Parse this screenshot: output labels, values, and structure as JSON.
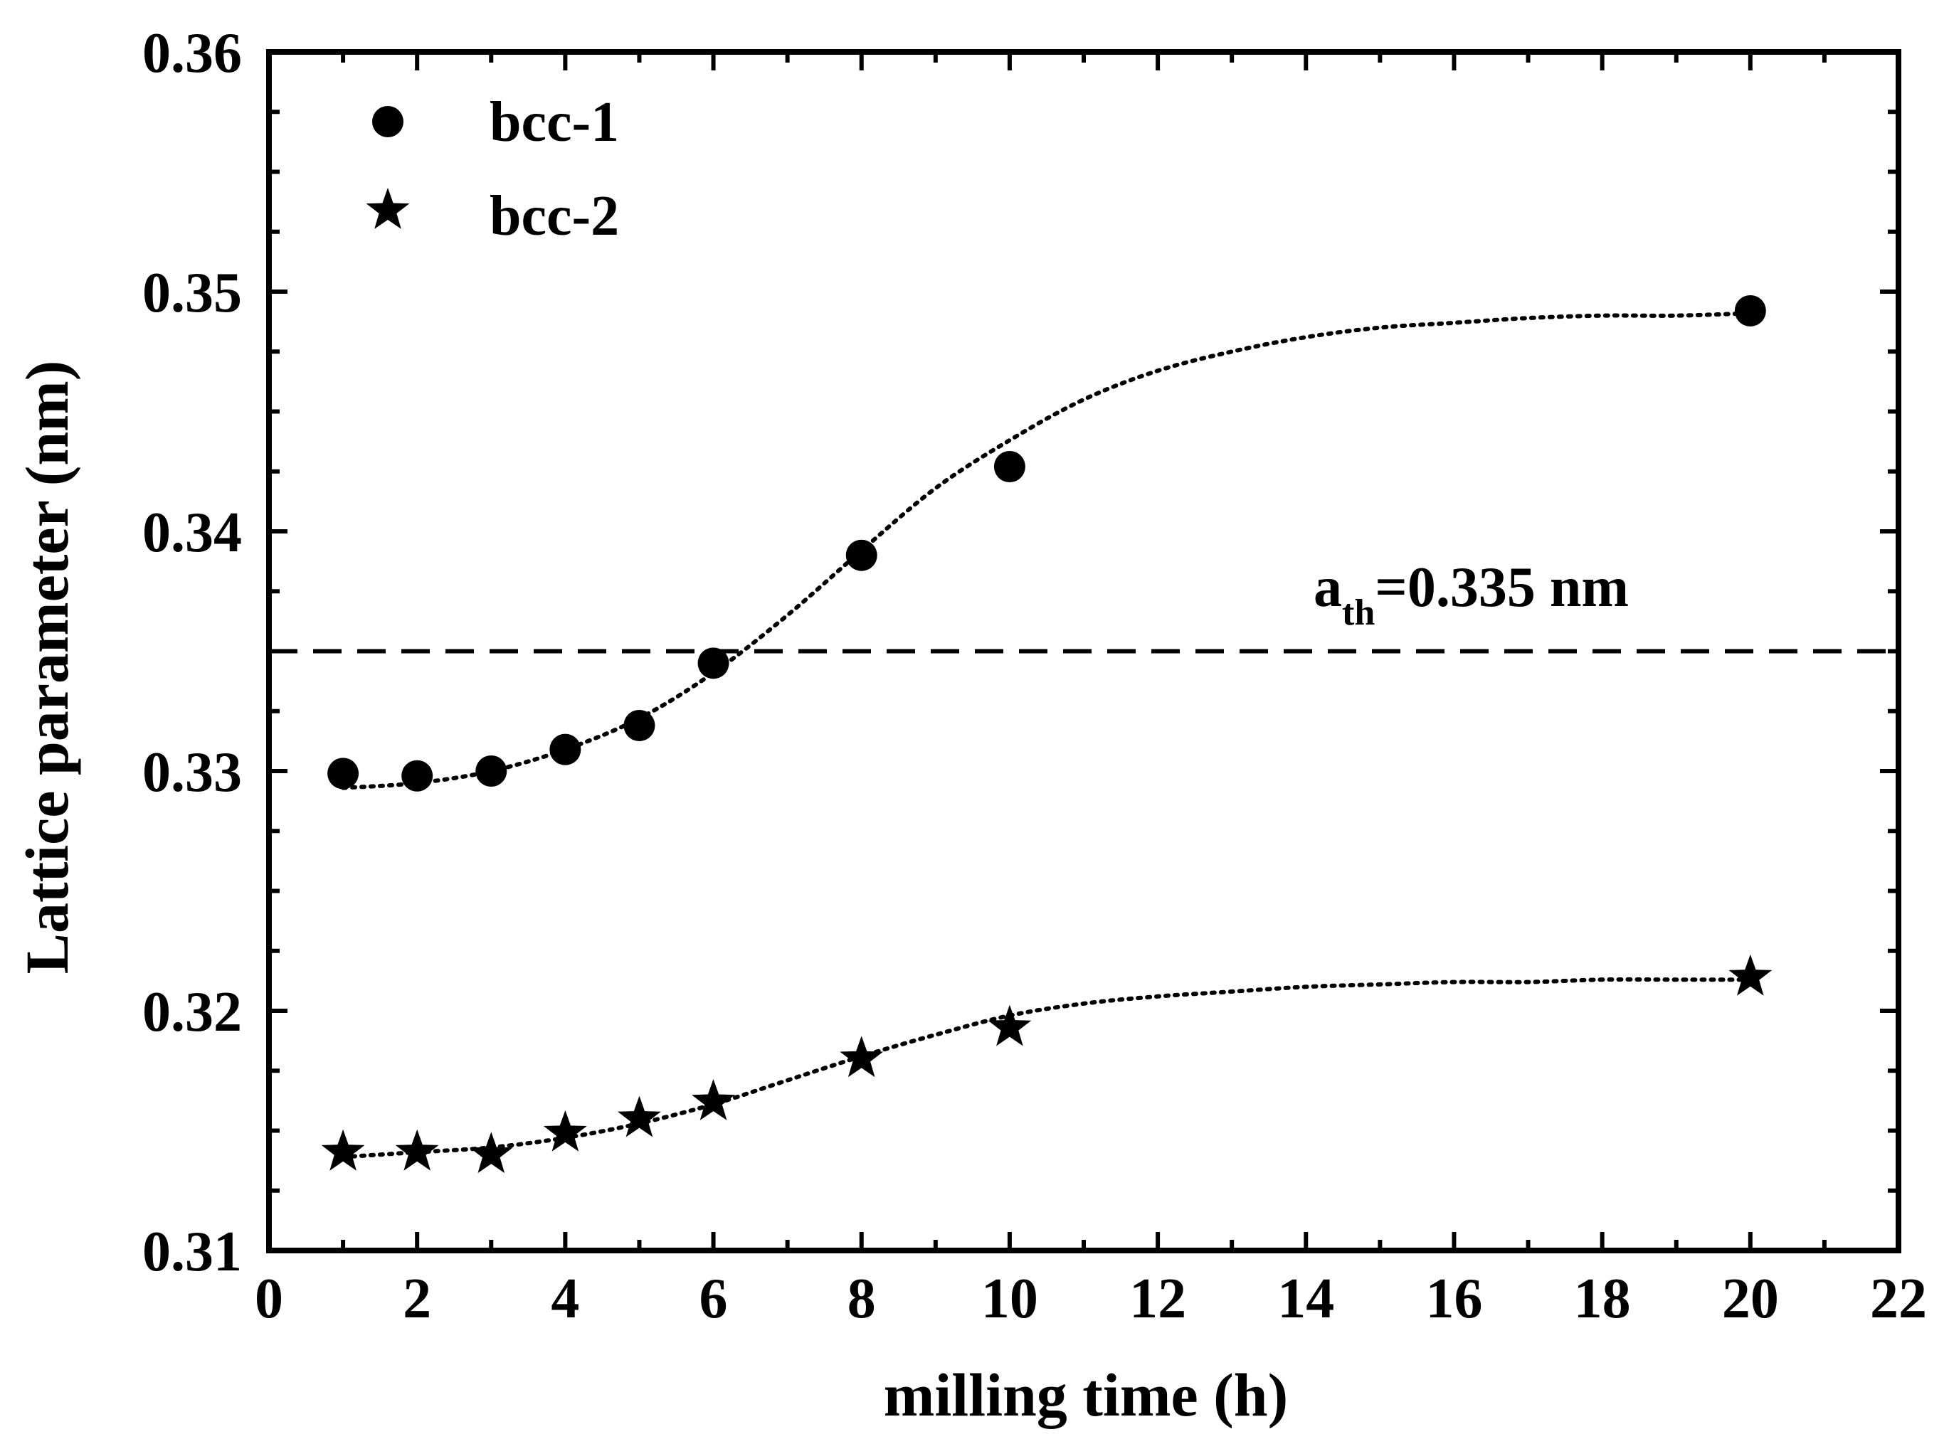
{
  "colors": {
    "ink": "#000000",
    "background": "#ffffff"
  },
  "chart_data": {
    "type": "scatter",
    "title": "",
    "xlabel": "milling time (h)",
    "ylabel": "Lattice parameter (nm)",
    "xlim": [
      0,
      22
    ],
    "ylim": [
      0.31,
      0.36
    ],
    "x_ticks": [
      0,
      2,
      4,
      6,
      8,
      10,
      12,
      14,
      16,
      18,
      20,
      22
    ],
    "x_tick_labels": [
      "0",
      "2",
      "4",
      "6",
      "8",
      "10",
      "12",
      "14",
      "16",
      "18",
      "20",
      "22"
    ],
    "y_ticks": [
      0.31,
      0.32,
      0.33,
      0.34,
      0.35,
      0.36
    ],
    "y_tick_labels": [
      "0.31",
      "0.32",
      "0.33",
      "0.34",
      "0.35",
      "0.36"
    ],
    "grid": false,
    "legend_position": "top-left",
    "series": [
      {
        "name": "bcc-1",
        "marker": "circle",
        "x": [
          1,
          2,
          3,
          4,
          5,
          6,
          8,
          10,
          20
        ],
        "y": [
          0.3299,
          0.3298,
          0.33,
          0.3309,
          0.3319,
          0.3345,
          0.339,
          0.3427,
          0.3492
        ],
        "fit": {
          "style": "dotted",
          "x": [
            1,
            2,
            3,
            4,
            5,
            6,
            7,
            8,
            9,
            10,
            11,
            12,
            13,
            14,
            15,
            16,
            17,
            18,
            19,
            20
          ],
          "y": [
            0.3293,
            0.3295,
            0.33,
            0.3309,
            0.3322,
            0.3341,
            0.3365,
            0.3392,
            0.3418,
            0.3438,
            0.3455,
            0.3467,
            0.3475,
            0.3481,
            0.3485,
            0.3487,
            0.3489,
            0.349,
            0.349,
            0.3491
          ]
        }
      },
      {
        "name": "bcc-2",
        "marker": "star",
        "x": [
          1,
          2,
          3,
          4,
          5,
          6,
          8,
          10,
          20
        ],
        "y": [
          0.3141,
          0.3141,
          0.314,
          0.3149,
          0.3155,
          0.3162,
          0.318,
          0.3193,
          0.3214
        ],
        "fit": {
          "style": "dotted",
          "x": [
            1,
            2,
            3,
            4,
            5,
            6,
            7,
            8,
            9,
            10,
            11,
            12,
            13,
            14,
            15,
            16,
            17,
            18,
            19,
            20
          ],
          "y": [
            0.3139,
            0.3141,
            0.3143,
            0.3147,
            0.3153,
            0.3161,
            0.3171,
            0.3181,
            0.319,
            0.3198,
            0.3203,
            0.3206,
            0.3208,
            0.321,
            0.3211,
            0.3212,
            0.3212,
            0.3213,
            0.3213,
            0.3213
          ]
        }
      }
    ],
    "reference_line": {
      "y": 0.335,
      "style": "dashed",
      "label_main": "a",
      "label_sub": "th",
      "label_rest": "=0.335 nm"
    }
  }
}
